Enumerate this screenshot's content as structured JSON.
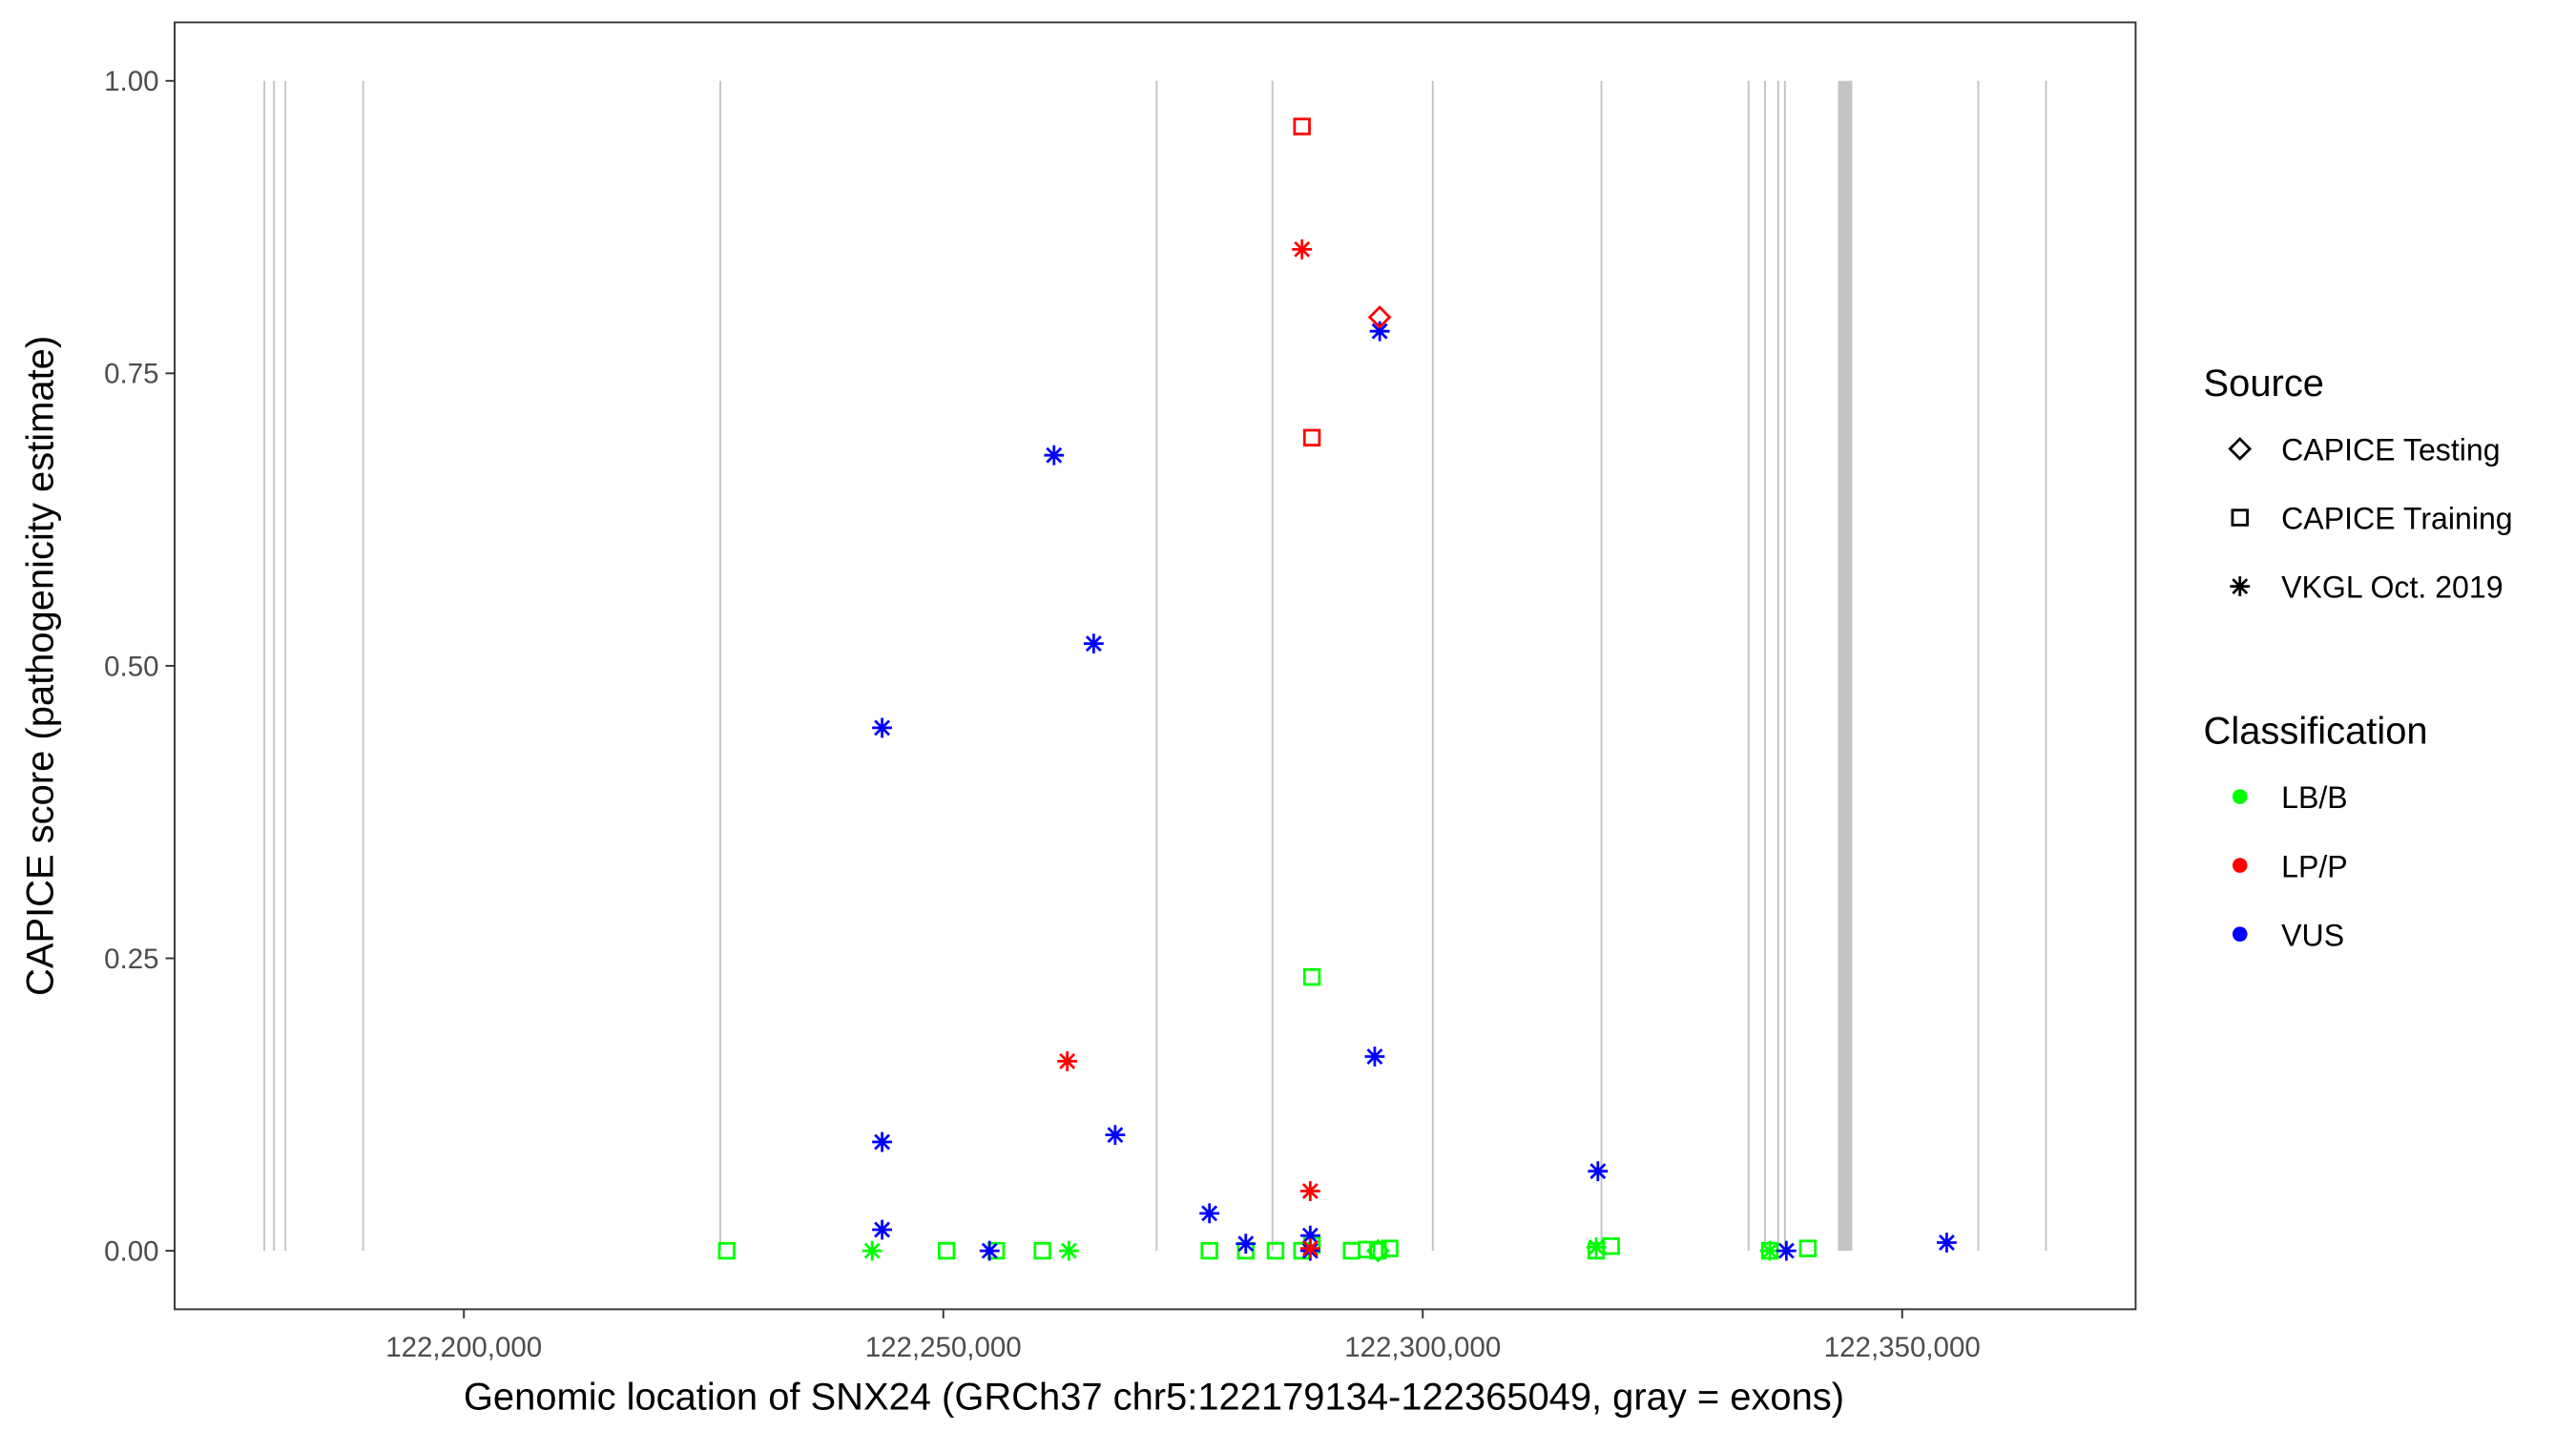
{
  "chart_data": {
    "type": "scatter",
    "xlabel": "Genomic location of SNX24 (GRCh37 chr5:122179134-122365049, gray = exons)",
    "ylabel": "CAPICE score (pathogenicity estimate)",
    "xlim": [
      122169838,
      122374345
    ],
    "ylim": [
      -0.05,
      1.05
    ],
    "x_ticks": [
      122200000,
      122250000,
      122300000,
      122350000
    ],
    "x_tick_labels": [
      "122,200,000",
      "122,250,000",
      "122,300,000",
      "122,350,000"
    ],
    "y_ticks": [
      0,
      0.25,
      0.5,
      0.75,
      1.0
    ],
    "y_tick_labels": [
      "0.00",
      "0.25",
      "0.50",
      "0.75",
      "1.00"
    ],
    "grid": false,
    "exon_color": "#c4c4c4",
    "exons": [
      [
        122179100,
        122179250
      ],
      [
        122180100,
        122180250
      ],
      [
        122181300,
        122181450
      ],
      [
        122189400,
        122189550
      ],
      [
        122226650,
        122226800
      ],
      [
        122272150,
        122272300
      ],
      [
        122284230,
        122284380
      ],
      [
        122300950,
        122301100
      ],
      [
        122318540,
        122318690
      ],
      [
        122333880,
        122334030
      ],
      [
        122335600,
        122335750
      ],
      [
        122336980,
        122337130
      ],
      [
        122337670,
        122337820
      ],
      [
        122343300,
        122344800
      ],
      [
        122357840,
        122357990
      ],
      [
        122364900,
        122365049
      ]
    ],
    "legend_position": "right",
    "legend": {
      "source": {
        "title": "Source",
        "items": [
          {
            "label": "CAPICE Testing",
            "shape": "diamond"
          },
          {
            "label": "CAPICE Training",
            "shape": "square"
          },
          {
            "label": "VKGL Oct. 2019",
            "shape": "star"
          }
        ]
      },
      "classification": {
        "title": "Classification",
        "items": [
          {
            "label": "LB/B",
            "color": "#00ff00"
          },
          {
            "label": "LP/P",
            "color": "#ff0000"
          },
          {
            "label": "VUS",
            "color": "#0000ff"
          }
        ]
      }
    },
    "points": [
      {
        "x": 122227412,
        "y": 0.0,
        "source": "CAPICE Training",
        "class": "LB/B"
      },
      {
        "x": 122242583,
        "y": 0.0,
        "source": "VKGL Oct. 2019",
        "class": "LB/B"
      },
      {
        "x": 122250341,
        "y": 0.0,
        "source": "CAPICE Training",
        "class": "LB/B"
      },
      {
        "x": 122255513,
        "y": 0.0,
        "source": "CAPICE Training",
        "class": "LB/B"
      },
      {
        "x": 122260340,
        "y": 0.0,
        "source": "CAPICE Training",
        "class": "LB/B"
      },
      {
        "x": 122263098,
        "y": 0.0,
        "source": "VKGL Oct. 2019",
        "class": "LB/B"
      },
      {
        "x": 122277752,
        "y": 0.0,
        "source": "CAPICE Training",
        "class": "LB/B"
      },
      {
        "x": 122281545,
        "y": 0.0,
        "source": "CAPICE Training",
        "class": "LB/B"
      },
      {
        "x": 122284648,
        "y": 0.0,
        "source": "CAPICE Training",
        "class": "LB/B"
      },
      {
        "x": 122287407,
        "y": 0.0,
        "source": "CAPICE Training",
        "class": "LB/B"
      },
      {
        "x": 122288441,
        "y": 0.234,
        "source": "CAPICE Training",
        "class": "LB/B"
      },
      {
        "x": 122288441,
        "y": 0.005,
        "source": "CAPICE Training",
        "class": "LB/B"
      },
      {
        "x": 122292579,
        "y": 0.0,
        "source": "CAPICE Training",
        "class": "LB/B"
      },
      {
        "x": 122294130,
        "y": 0.001,
        "source": "CAPICE Training",
        "class": "LB/B"
      },
      {
        "x": 122295337,
        "y": 0.0,
        "source": "CAPICE Testing",
        "class": "LB/B"
      },
      {
        "x": 122295337,
        "y": 0.0,
        "source": "CAPICE Training",
        "class": "LB/B"
      },
      {
        "x": 122296544,
        "y": 0.002,
        "source": "CAPICE Training",
        "class": "LB/B"
      },
      {
        "x": 122318094,
        "y": 0.003,
        "source": "VKGL Oct. 2019",
        "class": "LB/B"
      },
      {
        "x": 122318094,
        "y": 0.0,
        "source": "CAPICE Training",
        "class": "LB/B"
      },
      {
        "x": 122319645,
        "y": 0.004,
        "source": "CAPICE Training",
        "class": "LB/B"
      },
      {
        "x": 122336196,
        "y": 0.0,
        "source": "VKGL Oct. 2019",
        "class": "LB/B"
      },
      {
        "x": 122336196,
        "y": 0.0,
        "source": "CAPICE Training",
        "class": "LB/B"
      },
      {
        "x": 122340161,
        "y": 0.002,
        "source": "CAPICE Training",
        "class": "LB/B"
      },
      {
        "x": 122243617,
        "y": 0.447,
        "source": "VKGL Oct. 2019",
        "class": "VUS"
      },
      {
        "x": 122243617,
        "y": 0.093,
        "source": "VKGL Oct. 2019",
        "class": "VUS"
      },
      {
        "x": 122243617,
        "y": 0.018,
        "source": "VKGL Oct. 2019",
        "class": "VUS"
      },
      {
        "x": 122254823,
        "y": 0.0,
        "source": "VKGL Oct. 2019",
        "class": "VUS"
      },
      {
        "x": 122261546,
        "y": 0.68,
        "source": "VKGL Oct. 2019",
        "class": "VUS"
      },
      {
        "x": 122265684,
        "y": 0.519,
        "source": "VKGL Oct. 2019",
        "class": "VUS"
      },
      {
        "x": 122267925,
        "y": 0.099,
        "source": "VKGL Oct. 2019",
        "class": "VUS"
      },
      {
        "x": 122277752,
        "y": 0.032,
        "source": "VKGL Oct. 2019",
        "class": "VUS"
      },
      {
        "x": 122281545,
        "y": 0.006,
        "source": "VKGL Oct. 2019",
        "class": "VUS"
      },
      {
        "x": 122288268,
        "y": 0.013,
        "source": "VKGL Oct. 2019",
        "class": "VUS"
      },
      {
        "x": 122288268,
        "y": 0.0,
        "source": "VKGL Oct. 2019",
        "class": "VUS"
      },
      {
        "x": 122294993,
        "y": 0.166,
        "source": "VKGL Oct. 2019",
        "class": "VUS"
      },
      {
        "x": 122295510,
        "y": 0.786,
        "source": "VKGL Oct. 2019",
        "class": "VUS"
      },
      {
        "x": 122318266,
        "y": 0.068,
        "source": "VKGL Oct. 2019",
        "class": "VUS"
      },
      {
        "x": 122337920,
        "y": 0.0,
        "source": "VKGL Oct. 2019",
        "class": "VUS"
      },
      {
        "x": 122354643,
        "y": 0.007,
        "source": "VKGL Oct. 2019",
        "class": "VUS"
      },
      {
        "x": 122287407,
        "y": 0.961,
        "source": "CAPICE Training",
        "class": "LP/P"
      },
      {
        "x": 122287407,
        "y": 0.856,
        "source": "VKGL Oct. 2019",
        "class": "LP/P"
      },
      {
        "x": 122295510,
        "y": 0.798,
        "source": "CAPICE Testing",
        "class": "LP/P"
      },
      {
        "x": 122288441,
        "y": 0.695,
        "source": "CAPICE Training",
        "class": "LP/P"
      },
      {
        "x": 122262926,
        "y": 0.162,
        "source": "VKGL Oct. 2019",
        "class": "LP/P"
      },
      {
        "x": 122288268,
        "y": 0.051,
        "source": "VKGL Oct. 2019",
        "class": "LP/P"
      },
      {
        "x": 122288268,
        "y": 0.002,
        "source": "VKGL Oct. 2019",
        "class": "LP/P"
      }
    ]
  }
}
